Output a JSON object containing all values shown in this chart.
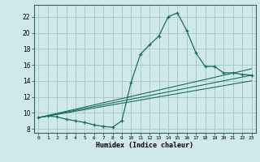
{
  "xlabel": "Humidex (Indice chaleur)",
  "background_color": "#cfe8e8",
  "grid_color": "#aacccc",
  "line_color": "#1e6b5e",
  "xlim": [
    -0.5,
    23.5
  ],
  "ylim": [
    7.5,
    23.5
  ],
  "xticks": [
    0,
    1,
    2,
    3,
    4,
    5,
    6,
    7,
    8,
    9,
    10,
    11,
    12,
    13,
    14,
    15,
    16,
    17,
    18,
    19,
    20,
    21,
    22,
    23
  ],
  "yticks": [
    8,
    10,
    12,
    14,
    16,
    18,
    20,
    22
  ],
  "curve1_x": [
    0,
    1,
    2,
    3,
    4,
    5,
    6,
    7,
    8,
    9,
    10,
    11,
    12,
    13,
    14,
    15,
    16,
    17,
    18,
    19,
    20,
    21,
    22,
    23
  ],
  "curve1_y": [
    9.4,
    9.6,
    9.5,
    9.2,
    9.0,
    8.8,
    8.5,
    8.3,
    8.2,
    9.0,
    13.8,
    17.3,
    18.5,
    19.6,
    22.0,
    22.5,
    20.3,
    17.5,
    15.8,
    15.8,
    15.0,
    15.0,
    14.8,
    14.7
  ],
  "curve2_x": [
    0,
    23
  ],
  "curve2_y": [
    9.4,
    14.7
  ],
  "curve3_x": [
    0,
    23
  ],
  "curve3_y": [
    9.4,
    15.5
  ],
  "curve4_x": [
    0,
    23
  ],
  "curve4_y": [
    9.4,
    14.0
  ]
}
